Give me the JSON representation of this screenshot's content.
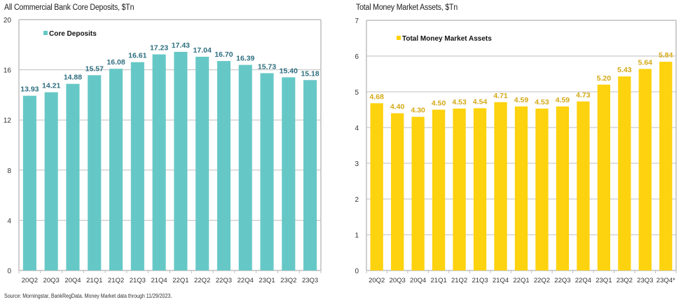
{
  "source_note": "Source: Morningstar, BankRegData. Money Market data through 11/29/2023.",
  "chart_data": [
    {
      "type": "bar",
      "title": "All Commercial Bank Core Deposits, $Tn",
      "xlabel": "",
      "ylabel": "",
      "ylim": [
        0,
        20
      ],
      "yticks": [
        0,
        4,
        8,
        12,
        16,
        20
      ],
      "grid": true,
      "legend": "top-left",
      "categories": [
        "20Q2",
        "20Q3",
        "20Q4",
        "21Q1",
        "21Q2",
        "21Q3",
        "21Q4",
        "22Q1",
        "22Q2",
        "22Q3",
        "22Q4",
        "23Q1",
        "23Q2",
        "23Q3"
      ],
      "series": [
        {
          "name": "Core Deposits",
          "color": "#66c8c6",
          "label_color": "#2e6e80",
          "values": [
            13.93,
            14.21,
            14.88,
            15.57,
            16.08,
            16.61,
            17.23,
            17.43,
            17.04,
            16.7,
            16.39,
            15.73,
            15.4,
            15.18
          ],
          "labels": [
            "13.93",
            "14.21",
            "14.88",
            "15.57",
            "16.08",
            "16.61",
            "17.23",
            "17.43",
            "17.04",
            "16.70",
            "16.39",
            "15.73",
            "15.40",
            "15.18"
          ]
        }
      ]
    },
    {
      "type": "bar",
      "title": "Total Money Market Assets, $Tn",
      "xlabel": "",
      "ylabel": "",
      "ylim": [
        0,
        7
      ],
      "yticks": [
        0,
        1,
        2,
        3,
        4,
        5,
        6,
        7
      ],
      "grid": true,
      "legend": "top-left",
      "categories": [
        "20Q2",
        "20Q3",
        "20Q4",
        "21Q1",
        "21Q2",
        "21Q3",
        "21Q4",
        "22Q1",
        "22Q2",
        "22Q3",
        "22Q4",
        "23Q1",
        "23Q2",
        "23Q3",
        "23Q4*"
      ],
      "series": [
        {
          "name": "Total Money Market Assets",
          "color": "#fdd20e",
          "label_color": "#d4a914",
          "values": [
            4.68,
            4.4,
            4.3,
            4.5,
            4.53,
            4.54,
            4.71,
            4.59,
            4.53,
            4.59,
            4.73,
            5.2,
            5.43,
            5.64,
            5.84
          ],
          "labels": [
            "4.68",
            "4.40",
            "4.30",
            "4.50",
            "4.53",
            "4.54",
            "4.71",
            "4.59",
            "4.53",
            "4.59",
            "4.73",
            "5.20",
            "5.43",
            "5.64",
            "5.84"
          ]
        }
      ]
    }
  ]
}
